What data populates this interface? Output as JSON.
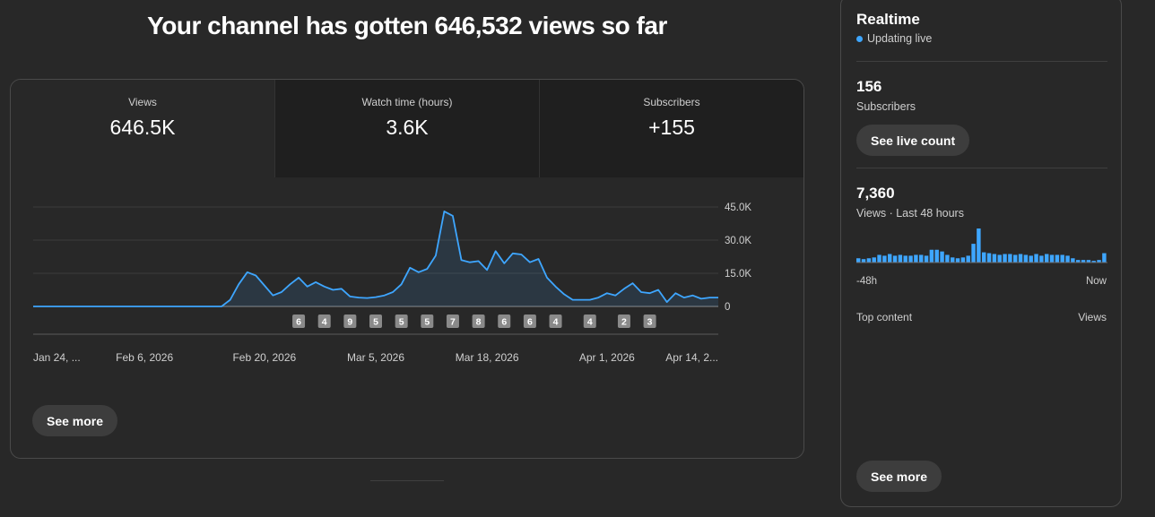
{
  "headline": "Your channel has gotten 646,532 views so far",
  "tabs": [
    {
      "label": "Views",
      "value": "646.5K",
      "active": true
    },
    {
      "label": "Watch time (hours)",
      "value": "3.6K",
      "active": false
    },
    {
      "label": "Subscribers",
      "value": "+155",
      "active": false
    }
  ],
  "main_see_more": "See more",
  "chart_data": {
    "type": "area",
    "y_ticks": [
      "45.0K",
      "30.0K",
      "15.0K",
      "0"
    ],
    "y_tick_values": [
      45000,
      30000,
      15000,
      0
    ],
    "ylim": [
      0,
      45000
    ],
    "x_labels": [
      "Jan 24, ...",
      "Feb 6, 2026",
      "Feb 20, 2026",
      "Mar 5, 2026",
      "Mar 18, 2026",
      "Apr 1, 2026",
      "Apr 14, 2..."
    ],
    "x_label_days": [
      0,
      13,
      27,
      40,
      53,
      67,
      80
    ],
    "views": [
      0,
      0,
      0,
      0,
      0,
      0,
      0,
      0,
      0,
      0,
      0,
      0,
      0,
      0,
      0,
      0,
      0,
      0,
      0,
      0,
      0,
      0,
      0,
      3000,
      10000,
      15500,
      14000,
      9500,
      5000,
      6500,
      10000,
      13000,
      9000,
      11000,
      9000,
      7500,
      8000,
      4500,
      4000,
      3800,
      4200,
      5000,
      6500,
      10000,
      17500,
      15500,
      17000,
      23000,
      43000,
      41000,
      21000,
      20000,
      20500,
      16500,
      25000,
      19500,
      24000,
      23500,
      20000,
      21500,
      13000,
      9000,
      5500,
      3000,
      3000,
      3000,
      4000,
      6000,
      5000,
      8000,
      10500,
      6500,
      6000,
      7500,
      2000,
      6000,
      4000,
      5000,
      3500,
      4000,
      4000
    ],
    "series": [
      {
        "name": "Views"
      }
    ],
    "color": "#3ea6ff",
    "markers": [
      {
        "label": "6",
        "day": 31
      },
      {
        "label": "4",
        "day": 34
      },
      {
        "label": "9",
        "day": 37
      },
      {
        "label": "5",
        "day": 40
      },
      {
        "label": "5",
        "day": 43
      },
      {
        "label": "5",
        "day": 46
      },
      {
        "label": "7",
        "day": 49
      },
      {
        "label": "8",
        "day": 52
      },
      {
        "label": "6",
        "day": 55
      },
      {
        "label": "6",
        "day": 58
      },
      {
        "label": "4",
        "day": 61
      },
      {
        "label": "4",
        "day": 65
      },
      {
        "label": "2",
        "day": 69
      },
      {
        "label": "3",
        "day": 72
      }
    ]
  },
  "realtime": {
    "title": "Realtime",
    "status": "Updating live",
    "subscribers_count": "156",
    "subscribers_label": "Subscribers",
    "live_count_button": "See live count",
    "views_count": "7,360",
    "views_label": "Views · Last 48 hours",
    "hourly_views": [
      5,
      4,
      5,
      6,
      9,
      8,
      10,
      8,
      9,
      8,
      8,
      9,
      9,
      8,
      15,
      15,
      13,
      9,
      6,
      5,
      6,
      8,
      22,
      40,
      12,
      11,
      10,
      9,
      10,
      10,
      9,
      10,
      9,
      8,
      10,
      8,
      10,
      9,
      9,
      9,
      8,
      5,
      3,
      3,
      3,
      2,
      3,
      11
    ],
    "axis_start": "-48h",
    "axis_end": "Now",
    "top_content_label": "Top content",
    "top_content_metric": "Views",
    "see_more": "See more"
  },
  "colors": {
    "accent": "#3ea6ff",
    "background": "#282828",
    "card_inactive": "#1f1f1f"
  }
}
